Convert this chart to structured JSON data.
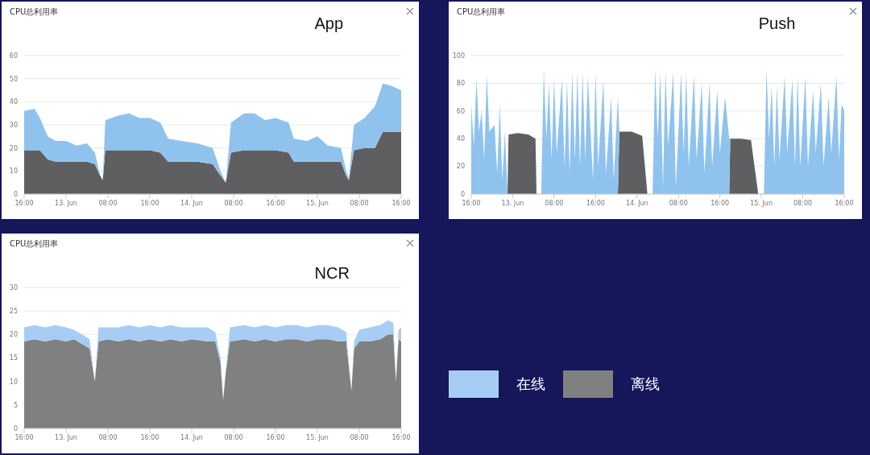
{
  "chart_data": [
    {
      "type": "area",
      "title": "CPU总利用率",
      "subtitle": "App",
      "stacked": true,
      "grid": "y",
      "legend": false,
      "x": [
        "--06-12T16:00",
        "--06-12T18:00",
        "--06-12T19:00",
        "--06-12T20:30",
        "--06-12T22:00",
        "--06-13T00:00",
        "--06-13T02:00",
        "--06-13T04:00",
        "--06-13T05:30",
        "--06-13T06:30",
        "--06-13T07:00",
        "--06-13T07:30",
        "--06-13T10:00",
        "--06-13T12:00",
        "--06-13T14:00",
        "--06-13T16:00",
        "--06-13T18:00",
        "--06-13T19:30",
        "--06-13T22:00",
        "--06-14T01:00",
        "--06-14T04:00",
        "--06-14T05:30",
        "--06-14T06:30",
        "--06-14T07:30",
        "--06-14T10:00",
        "--06-14T12:00",
        "--06-14T14:00",
        "--06-14T16:00",
        "--06-14T18:30",
        "--06-14T19:30",
        "--06-14T22:00",
        "--06-15T00:00",
        "--06-15T02:00",
        "--06-15T04:30",
        "--06-15T05:30",
        "--06-15T06:00",
        "--06-15T07:00",
        "--06-15T09:00",
        "--06-15T11:00",
        "--06-15T12:30",
        "--06-15T14:00",
        "--06-15T16:00"
      ],
      "xlim": [
        "--06-12T16:00",
        "--06-15T16:00"
      ],
      "xticks": [
        {
          "value": "--06-12T16:00",
          "label": "16:00"
        },
        {
          "value": "--06-13T00:00",
          "label": "13. Jun"
        },
        {
          "value": "--06-13T08:00",
          "label": "08:00"
        },
        {
          "value": "--06-13T16:00",
          "label": "16:00"
        },
        {
          "value": "--06-14T00:00",
          "label": "14. Jun"
        },
        {
          "value": "--06-14T08:00",
          "label": "08:00"
        },
        {
          "value": "--06-14T16:00",
          "label": "16:00"
        },
        {
          "value": "--06-15T00:00",
          "label": "15. Jun"
        },
        {
          "value": "--06-15T08:00",
          "label": "08:00"
        },
        {
          "value": "--06-15T16:00",
          "label": "16:00"
        }
      ],
      "ylim": [
        0,
        60
      ],
      "yticks": [
        0,
        10,
        20,
        30,
        40,
        50,
        60
      ],
      "series": [
        {
          "color": "#5f5f62",
          "values": [
            19,
            19,
            19,
            15,
            14,
            14,
            14,
            14,
            13,
            8,
            6,
            19,
            19,
            19,
            19,
            19,
            18,
            14,
            14,
            14,
            13,
            8,
            5,
            18,
            19,
            19,
            19,
            19,
            18,
            14,
            14,
            14,
            14,
            14,
            8,
            6,
            19,
            20,
            20,
            27,
            27,
            27
          ]
        },
        {
          "color": "#8fc3ee",
          "values": [
            17,
            18,
            14,
            10,
            9,
            9,
            7,
            8,
            5,
            0,
            0,
            13,
            15,
            16,
            14,
            14,
            13,
            10,
            9,
            8,
            7,
            2,
            0,
            13,
            16,
            16,
            13,
            14,
            13,
            10,
            9,
            11,
            7,
            6,
            2,
            1,
            11,
            13,
            18,
            21,
            20,
            18
          ]
        }
      ]
    },
    {
      "type": "area",
      "title": "CPU总利用率",
      "subtitle": "Push",
      "stacked": true,
      "grid": "y",
      "legend": false,
      "x": [
        "--06-12T16:00",
        "--06-12T16:30",
        "--06-12T17:00",
        "--06-12T17:30",
        "--06-12T18:00",
        "--06-12T18:30",
        "--06-12T19:00",
        "--06-12T19:30",
        "--06-12T20:30",
        "--06-12T21:00",
        "--06-12T21:30",
        "--06-12T22:00",
        "--06-12T22:30",
        "--06-12T23:00",
        "--06-12T23:12",
        "--06-13T01:00",
        "--06-13T03:00",
        "--06-13T04:24",
        "--06-13T04:36",
        "--06-13T05:30",
        "--06-13T06:00",
        "--06-13T06:30",
        "--06-13T07:00",
        "--06-13T07:30",
        "--06-13T08:00",
        "--06-13T08:30",
        "--06-13T09:30",
        "--06-13T10:00",
        "--06-13T10:30",
        "--06-13T11:00",
        "--06-13T11:30",
        "--06-13T12:00",
        "--06-13T12:30",
        "--06-13T13:00",
        "--06-13T13:30",
        "--06-13T14:00",
        "--06-13T14:30",
        "--06-13T15:30",
        "--06-13T16:00",
        "--06-13T16:30",
        "--06-13T17:30",
        "--06-13T18:00",
        "--06-13T19:00",
        "--06-13T19:30",
        "--06-13T20:18",
        "--06-13T20:36",
        "--06-13T23:00",
        "--06-14T01:00",
        "--06-14T02:00",
        "--06-14T03:00",
        "--06-14T03:30",
        "--06-14T04:00",
        "--06-14T04:30",
        "--06-14T05:00",
        "--06-14T05:30",
        "--06-14T06:00",
        "--06-14T07:00",
        "--06-14T07:30",
        "--06-14T08:30",
        "--06-14T09:00",
        "--06-14T09:30",
        "--06-14T10:00",
        "--06-14T11:00",
        "--06-14T11:30",
        "--06-14T12:30",
        "--06-14T13:00",
        "--06-14T14:00",
        "--06-14T14:30",
        "--06-14T15:30",
        "--06-14T16:00",
        "--06-14T17:00",
        "--06-14T17:48",
        "--06-14T18:00",
        "--06-14T20:00",
        "--06-14T22:00",
        "--06-14T23:24",
        "--06-15T00:30",
        "--06-15T01:00",
        "--06-15T01:30",
        "--06-15T02:00",
        "--06-15T02:30",
        "--06-15T03:00",
        "--06-15T03:30",
        "--06-15T04:30",
        "--06-15T05:00",
        "--06-15T06:00",
        "--06-15T06:30",
        "--06-15T07:00",
        "--06-15T07:30",
        "--06-15T08:30",
        "--06-15T09:00",
        "--06-15T10:00",
        "--06-15T10:30",
        "--06-15T11:30",
        "--06-15T12:00",
        "--06-15T13:00",
        "--06-15T13:30",
        "--06-15T14:30",
        "--06-15T15:00",
        "--06-15T15:30",
        "--06-15T16:00"
      ],
      "xlim": [
        "--06-12T16:00",
        "--06-15T16:00"
      ],
      "xticks": [
        {
          "value": "--06-12T16:00",
          "label": "16:00"
        },
        {
          "value": "--06-13T00:00",
          "label": "13. Jun"
        },
        {
          "value": "--06-13T08:00",
          "label": "08:00"
        },
        {
          "value": "--06-13T16:00",
          "label": "16:00"
        },
        {
          "value": "--06-14T00:00",
          "label": "14. Jun"
        },
        {
          "value": "--06-14T08:00",
          "label": "08:00"
        },
        {
          "value": "--06-14T16:00",
          "label": "16:00"
        },
        {
          "value": "--06-15T00:00",
          "label": "15. Jun"
        },
        {
          "value": "--06-15T08:00",
          "label": "08:00"
        },
        {
          "value": "--06-15T16:00",
          "label": "16:00"
        }
      ],
      "ylim": [
        0,
        100
      ],
      "yticks": [
        0,
        20,
        40,
        60,
        80,
        100
      ],
      "series": [
        {
          "color": "#5f5f62",
          "values": [
            0,
            0,
            0,
            0,
            0,
            0,
            0,
            0,
            0,
            0,
            0,
            0,
            0,
            0,
            43,
            44,
            43,
            40,
            0,
            0,
            0,
            0,
            0,
            0,
            0,
            0,
            0,
            0,
            0,
            0,
            0,
            0,
            0,
            0,
            0,
            0,
            0,
            0,
            0,
            0,
            0,
            0,
            0,
            0,
            0,
            45,
            45,
            42,
            0,
            0,
            0,
            0,
            0,
            0,
            0,
            0,
            0,
            0,
            0,
            0,
            0,
            0,
            0,
            0,
            0,
            0,
            0,
            0,
            0,
            0,
            0,
            0,
            40,
            40,
            39,
            0,
            0,
            0,
            0,
            0,
            0,
            0,
            0,
            0,
            0,
            0,
            0,
            0,
            0,
            0,
            0,
            0,
            0,
            0,
            0,
            0,
            0,
            0,
            0,
            0,
            0
          ]
        },
        {
          "color": "#8fc3ee",
          "values": [
            65,
            35,
            83,
            45,
            60,
            25,
            86,
            45,
            50,
            15,
            65,
            10,
            45,
            0,
            0,
            0,
            0,
            0,
            0,
            0,
            90,
            40,
            80,
            25,
            83,
            30,
            83,
            20,
            82,
            15,
            88,
            25,
            89,
            20,
            88,
            25,
            85,
            10,
            88,
            20,
            82,
            15,
            70,
            10,
            70,
            0,
            0,
            0,
            0,
            0,
            90,
            40,
            88,
            5,
            89,
            35,
            88,
            5,
            87,
            30,
            87,
            20,
            86,
            25,
            80,
            15,
            80,
            20,
            75,
            30,
            70,
            40,
            0,
            0,
            0,
            0,
            0,
            90,
            40,
            78,
            20,
            78,
            25,
            85,
            30,
            83,
            20,
            85,
            20,
            85,
            20,
            75,
            30,
            80,
            20,
            70,
            30,
            85,
            25,
            65,
            60
          ]
        }
      ]
    },
    {
      "type": "area",
      "title": "CPU总利用率",
      "subtitle": "NCR",
      "stacked": true,
      "grid": "y",
      "legend": "right",
      "x": [
        "--06-12T16:00",
        "--06-12T18:00",
        "--06-12T20:00",
        "--06-12T22:00",
        "--06-13T00:00",
        "--06-13T01:30",
        "--06-13T03:00",
        "--06-13T04:30",
        "--06-13T05:30",
        "--06-13T06:12",
        "--06-13T08:00",
        "--06-13T10:00",
        "--06-13T12:00",
        "--06-13T14:00",
        "--06-13T16:00",
        "--06-13T18:00",
        "--06-13T20:00",
        "--06-13T22:00",
        "--06-14T00:00",
        "--06-14T03:00",
        "--06-14T04:30",
        "--06-14T05:30",
        "--06-14T06:00",
        "--06-14T06:30",
        "--06-14T07:18",
        "--06-14T10:00",
        "--06-14T12:00",
        "--06-14T14:00",
        "--06-14T16:00",
        "--06-14T18:00",
        "--06-14T20:00",
        "--06-14T22:00",
        "--06-15T00:00",
        "--06-15T02:00",
        "--06-15T04:00",
        "--06-15T05:30",
        "--06-15T06:30",
        "--06-15T07:00",
        "--06-15T08:00",
        "--06-15T10:00",
        "--06-15T12:00",
        "--06-15T13:30",
        "--06-15T14:30",
        "--06-15T15:00",
        "--06-15T15:30",
        "--06-15T16:00"
      ],
      "xlim": [
        "--06-12T16:00",
        "--06-15T16:00"
      ],
      "xticks": [
        {
          "value": "--06-12T16:00",
          "label": "16:00"
        },
        {
          "value": "--06-13T00:00",
          "label": "13. Jun"
        },
        {
          "value": "--06-13T08:00",
          "label": "08:00"
        },
        {
          "value": "--06-13T16:00",
          "label": "16:00"
        },
        {
          "value": "--06-14T00:00",
          "label": "14. Jun"
        },
        {
          "value": "--06-14T08:00",
          "label": "08:00"
        },
        {
          "value": "--06-14T16:00",
          "label": "16:00"
        },
        {
          "value": "--06-15T00:00",
          "label": "15. Jun"
        },
        {
          "value": "--06-15T08:00",
          "label": "08:00"
        },
        {
          "value": "--06-15T16:00",
          "label": "16:00"
        }
      ],
      "ylim": [
        0,
        30
      ],
      "yticks": [
        0,
        5,
        10,
        15,
        20,
        25,
        30
      ],
      "series": [
        {
          "name": "离线",
          "color": "#808080",
          "values": [
            18.5,
            19,
            18.5,
            19,
            18.5,
            19,
            18,
            17,
            10,
            18.5,
            19,
            18.5,
            19,
            18.5,
            19,
            18.5,
            19,
            18.5,
            19,
            18.5,
            18.5,
            14,
            6,
            12,
            18.5,
            19,
            18.5,
            19,
            18.5,
            19,
            19,
            18.5,
            19,
            19,
            18.5,
            18.5,
            8,
            17,
            18.5,
            18.5,
            19,
            20,
            20,
            10,
            19,
            18.5
          ]
        },
        {
          "name": "在线",
          "color": "#a7cdf5",
          "values": [
            3,
            3,
            3,
            3,
            3,
            2,
            2,
            2,
            0,
            3,
            2.5,
            3,
            3,
            3,
            3,
            3,
            3,
            3,
            2.5,
            3,
            2,
            1,
            0,
            0,
            3,
            3,
            3,
            3,
            3,
            3,
            3,
            3,
            3,
            3,
            3,
            2,
            0,
            1.5,
            2.5,
            3,
            3,
            3,
            2.5,
            0,
            2,
            3
          ]
        }
      ]
    }
  ]
}
